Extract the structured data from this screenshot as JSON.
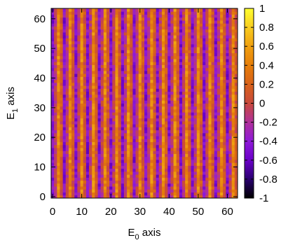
{
  "chart_data": {
    "type": "heatmap",
    "title": "",
    "xlabel": {
      "main": "E",
      "sub": "0",
      "rest": " axis"
    },
    "ylabel": {
      "main": "E",
      "sub": "1",
      "rest": " axis"
    },
    "xlim": [
      0,
      63
    ],
    "ylim": [
      0,
      63
    ],
    "x_ticks": [
      "0",
      "10",
      "20",
      "30",
      "40",
      "50",
      "60"
    ],
    "y_ticks": [
      "0",
      "10",
      "20",
      "30",
      "40",
      "50",
      "60"
    ],
    "grid": false,
    "colorbar": {
      "range": [
        -1,
        1
      ],
      "ticks": [
        "1",
        "0.8",
        "0.6",
        "0.4",
        "0.2",
        "0",
        "-0.2",
        "-0.4",
        "-0.6",
        "-0.8",
        "-1"
      ],
      "colors": [
        "#000000",
        "#2a0070",
        "#6a00c8",
        "#8f1ad8",
        "#b0309a",
        "#c84a3c",
        "#d8621a",
        "#e67e0a",
        "#f0a010",
        "#f8cc20",
        "#ffff30"
      ]
    },
    "pattern": {
      "description_of_values": "vertical stripes alternating between about -0.45 and 0.45 along E0 with period 4, with noise",
      "column_values": [
        -0.45,
        -0.1,
        0.45,
        0.1
      ]
    }
  }
}
